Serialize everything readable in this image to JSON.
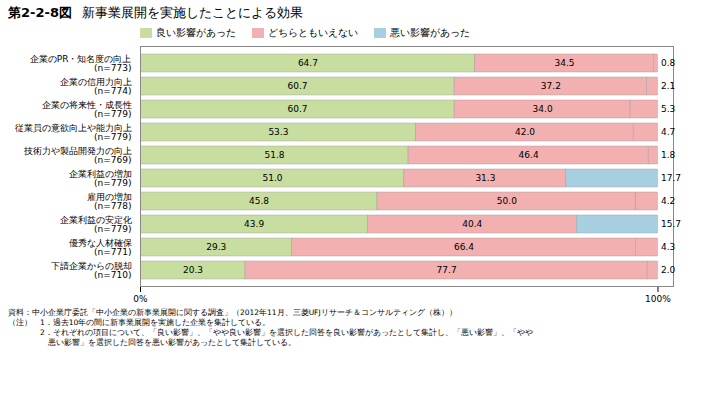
{
  "chart_data": {
    "type": "bar",
    "orientation": "horizontal",
    "stacked": true,
    "data_labels": true,
    "legend": "top",
    "grid": false,
    "figure_label": "第2-2-8図",
    "title": "新事業展開を実施したことによる効果",
    "footnotes": [
      "資料：中小企業庁委託「中小企業の新事業展開に関する調査」（2012年11月、三菱UFJリサーチ＆コンサルティング（株））",
      "（注）　1．過去10年の間に新事業展開を実施した企業を集計している。",
      "　　　　2．それぞれの項目について、「良い影響」、「やや良い影響」を選択した回答を良い影響があったとして集計し、「悪い影響」、「やや",
      "　　　　　悪い影響」を選択した回答を悪い影響があったとして集計している。"
    ],
    "categories": [
      "企業のPR・知名度の向上\n(n=773)",
      "企業の信用力向上\n(n=774)",
      "企業の将来性・成長性\n(n=779)",
      "従業員の意欲向上や能力向上\n(n=779)",
      "技術力や製品開発力の向上\n(n=769)",
      "企業利益の増加\n(n=779)",
      "雇用の増加\n(n=778)",
      "企業利益の安定化\n(n=779)",
      "優秀な人材確保\n(n=771)",
      "下請企業からの脱却\n(n=710)"
    ],
    "series": [
      {
        "name": "良い影響があった",
        "color": "#c8dda0",
        "values": [
          64.7,
          60.7,
          60.7,
          53.3,
          51.8,
          51.0,
          45.8,
          43.9,
          29.3,
          20.3
        ],
        "value_labels": [
          "64.7",
          "60.7",
          "60.7",
          "53.3",
          "51.8",
          "51.0",
          "45.8",
          "43.9",
          "29.3",
          "20.3"
        ]
      },
      {
        "name": "どちらともいえない",
        "color": "#f2b0b0",
        "values": [
          34.5,
          37.2,
          34.0,
          42.0,
          46.4,
          31.3,
          50.0,
          40.4,
          66.4,
          77.7
        ],
        "value_labels": [
          "34.5",
          "37.2",
          "34.0",
          "42.0",
          "46.4",
          "31.3",
          "50.0",
          "40.4",
          "66.4",
          "77.7"
        ]
      },
      {
        "name": "悪い影響があった",
        "color": "#a8cfe0",
        "colors": [
          "#f2b0b0",
          "#f2b0b0",
          "#f2b0b0",
          "#f2b0b0",
          "#f2b0b0",
          "#a8cfe0",
          "#f2b0b0",
          "#a8cfe0",
          "#f2b0b0",
          "#f2b0b0"
        ],
        "values": [
          0.8,
          2.1,
          5.3,
          4.7,
          1.8,
          17.7,
          4.2,
          15.7,
          4.3,
          2.0
        ],
        "value_labels": [
          "0.8",
          "2.1",
          "5.3",
          "4.7",
          "1.8",
          "17.7",
          "4.2",
          "15.7",
          "4.3",
          "2.0"
        ]
      }
    ],
    "xlim": [
      0,
      103
    ],
    "xticks": [
      {
        "value": 0,
        "label": "0%"
      },
      {
        "value": 100,
        "label": "100%"
      }
    ]
  }
}
